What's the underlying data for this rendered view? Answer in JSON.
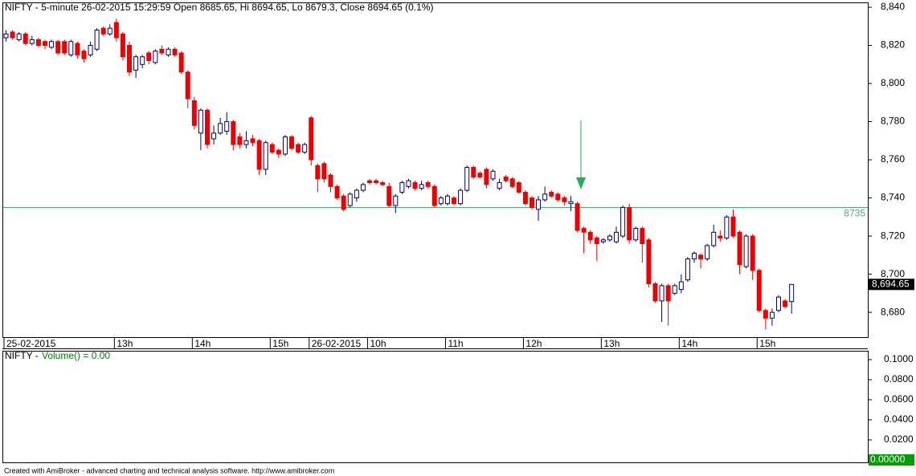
{
  "chart_data": [
    {
      "type": "candlestick",
      "title": "NIFTY - 5-minute 26-02-2015 15:29:59 Open 8685.65, Hi 8694.65, Lo 8679.3, Close 8694.65 (0.1%)",
      "open": [
        8824,
        8827,
        8823,
        8826,
        8821,
        8823,
        8822,
        8819,
        8822,
        8822,
        8815,
        8821,
        8817,
        8815,
        8818,
        8829,
        8826,
        8832,
        8826,
        8820,
        8807,
        8810,
        8816,
        8811,
        8818,
        8815,
        8818,
        8816,
        8806,
        8791,
        8774,
        8786,
        8771,
        8774,
        8775,
        8780,
        8772,
        8768,
        8771,
        8770,
        8755,
        8768,
        8765,
        8763,
        8772,
        8768,
        8764,
        8782,
        8757,
        8758,
        8752,
        8746,
        8741,
        8736,
        8740,
        8744,
        8749,
        8749,
        8748,
        8746,
        8736,
        8743,
        8746,
        8748,
        8745,
        8748,
        8746,
        8737,
        8737,
        8740,
        8737,
        8744,
        8756,
        8753,
        8755,
        8750,
        8745,
        8751,
        8750,
        8748,
        8743,
        8740,
        8734,
        8739,
        8743,
        8742,
        8740,
        8737,
        8737,
        8724,
        8722,
        8719,
        8717,
        8718,
        8717,
        8720,
        8735,
        8718,
        8724,
        8718,
        8695,
        8686,
        8694,
        8690,
        8692,
        8697,
        8708,
        8710,
        8708,
        8715,
        8720,
        8719,
        8730,
        8722,
        8704,
        8720,
        8702,
        8681,
        8677,
        8681,
        8686,
        8685.65
      ],
      "high": [
        8828,
        8828,
        8827,
        8827,
        8825,
        8824,
        8823,
        8823,
        8823,
        8823,
        8823,
        8822,
        8818,
        8822,
        8829,
        8830,
        8831,
        8834,
        8827,
        8822,
        8815,
        8815,
        8817,
        8818,
        8820,
        8819,
        8819,
        8817,
        8807,
        8793,
        8787,
        8787,
        8778,
        8782,
        8785,
        8781,
        8774,
        8775,
        8773,
        8771,
        8770,
        8769,
        8766,
        8773,
        8773,
        8769,
        8769,
        8783,
        8758,
        8759,
        8753,
        8747,
        8742,
        8743,
        8745,
        8748,
        8750,
        8750,
        8749,
        8748,
        8742,
        8749,
        8750,
        8749,
        8749,
        8749,
        8747,
        8741,
        8742,
        8741,
        8745,
        8757,
        8757,
        8754,
        8756,
        8755,
        8750,
        8752,
        8751,
        8749,
        8744,
        8741,
        8741,
        8746,
        8744,
        8743,
        8741,
        8741,
        8738,
        8725,
        8723,
        8720,
        8719,
        8721,
        8725,
        8736,
        8737,
        8725,
        8725,
        8719,
        8696,
        8695,
        8695,
        8695,
        8700,
        8709,
        8712,
        8711,
        8716,
        8726,
        8723,
        8731,
        8734,
        8723,
        8721,
        8721,
        8703,
        8682,
        8682,
        8689,
        8687,
        8694.65
      ],
      "low": [
        8822,
        8823,
        8822,
        8820,
        8820,
        8819,
        8818,
        8818,
        8815,
        8815,
        8814,
        8813,
        8811,
        8814,
        8817,
        8825,
        8825,
        8822,
        8812,
        8804,
        8803,
        8808,
        8810,
        8810,
        8815,
        8814,
        8814,
        8805,
        8787,
        8776,
        8765,
        8766,
        8768,
        8773,
        8773,
        8765,
        8766,
        8766,
        8767,
        8752,
        8752,
        8763,
        8761,
        8762,
        8765,
        8763,
        8763,
        8757,
        8743,
        8748,
        8743,
        8739,
        8733,
        8735,
        8738,
        8743,
        8747,
        8747,
        8746,
        8735,
        8732,
        8742,
        8745,
        8744,
        8744,
        8745,
        8735,
        8736,
        8736,
        8736,
        8736,
        8743,
        8750,
        8750,
        8745,
        8749,
        8744,
        8748,
        8745,
        8742,
        8736,
        8734,
        8728,
        8738,
        8740,
        8738,
        8736,
        8733,
        8722,
        8711,
        8716,
        8707,
        8716,
        8717,
        8716,
        8719,
        8716,
        8717,
        8706,
        8693,
        8685,
        8675,
        8673,
        8689,
        8690,
        8696,
        8706,
        8703,
        8707,
        8714,
        8717,
        8718,
        8719,
        8700,
        8703,
        8697,
        8680,
        8671,
        8673,
        8680,
        8682,
        8679.3
      ],
      "close": [
        8826,
        8824,
        8826,
        8821,
        8823,
        8820,
        8820,
        8822,
        8816,
        8816,
        8822,
        8815,
        8813,
        8820,
        8828,
        8826,
        8829,
        8824,
        8814,
        8806,
        8814,
        8814,
        8812,
        8817,
        8816,
        8818,
        8815,
        8806,
        8792,
        8778,
        8786,
        8768,
        8774,
        8779,
        8780,
        8768,
        8768,
        8770,
        8769,
        8755,
        8769,
        8764,
        8763,
        8772,
        8766,
        8764,
        8768,
        8760,
        8750,
        8750,
        8746,
        8740,
        8734,
        8742,
        8744,
        8747,
        8748,
        8748,
        8747,
        8736,
        8741,
        8748,
        8749,
        8745,
        8747,
        8746,
        8736,
        8740,
        8741,
        8737,
        8744,
        8756,
        8751,
        8751,
        8747,
        8754,
        8748,
        8749,
        8746,
        8743,
        8737,
        8735,
        8739,
        8742,
        8741,
        8739,
        8738,
        8738,
        8723,
        8722,
        8718,
        8716,
        8718,
        8720,
        8722,
        8735,
        8718,
        8724,
        8716,
        8695,
        8686,
        8694,
        8686,
        8694,
        8696,
        8708,
        8711,
        8708,
        8715,
        8722,
        8719,
        8730,
        8720,
        8705,
        8720,
        8702,
        8681,
        8677,
        8680,
        8688,
        8683,
        8694.65
      ],
      "ylim": [
        8667,
        8840
      ],
      "yticks": [
        {
          "value": 8680,
          "label": "8,680"
        },
        {
          "value": 8700,
          "label": "8,700"
        },
        {
          "value": 8720,
          "label": "8,720"
        },
        {
          "value": 8740,
          "label": "8,740"
        },
        {
          "value": 8760,
          "label": "8,760"
        },
        {
          "value": 8780,
          "label": "8,780"
        },
        {
          "value": 8800,
          "label": "8,800"
        },
        {
          "value": 8820,
          "label": "8,820"
        },
        {
          "value": 8840,
          "label": "8,840"
        }
      ],
      "xticks": [
        {
          "value": 0,
          "label": "25-02-2015"
        },
        {
          "value": 17,
          "label": "13h"
        },
        {
          "value": 29,
          "label": "14h"
        },
        {
          "value": 41,
          "label": "15h"
        },
        {
          "value": 47,
          "label": "26-02-2015"
        },
        {
          "value": 56,
          "label": "10h"
        },
        {
          "value": 68,
          "label": "11h"
        },
        {
          "value": 80,
          "label": "12h"
        },
        {
          "value": 92,
          "label": "13h"
        },
        {
          "value": 104,
          "label": "14h"
        },
        {
          "value": 116,
          "label": "15h"
        }
      ],
      "up_color": "#000080",
      "down_color": "#ee0000",
      "hline": {
        "value": 8735,
        "color": "#4caf72"
      },
      "last_price": {
        "value": 8694.65,
        "label": "8,694.65"
      }
    },
    {
      "type": "volume",
      "name": "NIFTY - ",
      "indicator": "Volume() = 0.00",
      "ylim": [
        0,
        0.1
      ],
      "yticks": [
        {
          "value": 0.02,
          "label": "0.0200"
        },
        {
          "value": 0.04,
          "label": "0.0400"
        },
        {
          "value": 0.06,
          "label": "0.0600"
        },
        {
          "value": 0.08,
          "label": "0.0800"
        },
        {
          "value": 0.1,
          "label": "0.1000"
        }
      ],
      "value": 0,
      "value_label": "0.00000"
    }
  ],
  "footer": "Created with AmiBroker - advanced charting and technical analysis software. http://www.amibroker.com"
}
